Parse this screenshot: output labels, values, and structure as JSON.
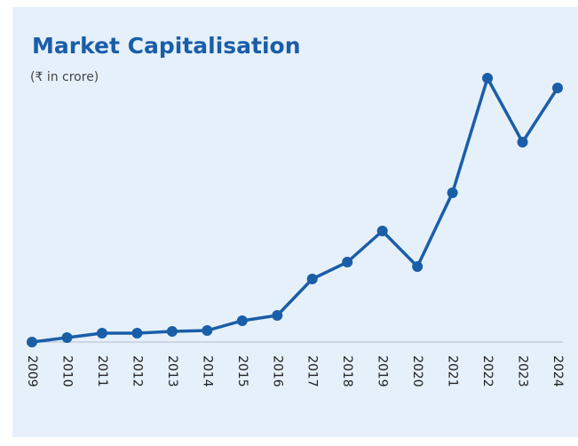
{
  "chart_data": {
    "type": "line",
    "title": "Market Capitalisation",
    "subtitle": "(₹ in crore)",
    "categories": [
      "2009",
      "2010",
      "2011",
      "2012",
      "2013",
      "2014",
      "2015",
      "2016",
      "2017",
      "2018",
      "2019",
      "2020",
      "2021",
      "2022",
      "2023",
      "2024"
    ],
    "series": [
      {
        "color": "#1a5ea8",
        "values": [
          0,
          5,
          10,
          10,
          12,
          13,
          24,
          30,
          71,
          90,
          125,
          85,
          168,
          297,
          225,
          286
        ]
      }
    ],
    "ylim": [
      0,
      300
    ]
  }
}
